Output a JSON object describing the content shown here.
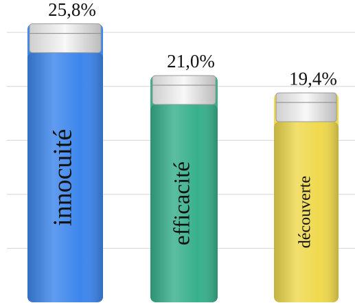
{
  "chart_data": {
    "type": "bar",
    "categories": [
      "innocuité",
      "efficacité",
      "découverte"
    ],
    "values": [
      25.8,
      21.0,
      19.4
    ],
    "value_labels": [
      "25,8%",
      "21,0%",
      "19,4%"
    ],
    "colors": [
      "#3d86ec",
      "#38b08c",
      "#efd94e"
    ],
    "ylim": [
      0,
      28
    ],
    "yticks": [
      5,
      10,
      15,
      20,
      25
    ],
    "grid": true
  }
}
